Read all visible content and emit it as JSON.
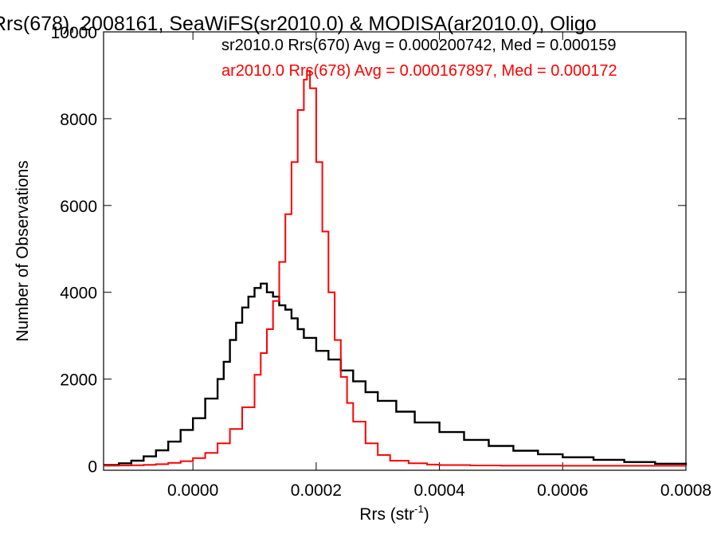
{
  "chart_data": {
    "type": "line",
    "title": "Rrs(678), 2008161, SeaWiFS(sr2010.0) & MODISA(ar2010.0), Oligo",
    "xlabel": "Rrs (str",
    "xlabel_sup": "-1",
    "xlabel_tail": ")",
    "ylabel": "Number of Observations",
    "xlim": [
      -0.000145,
      0.0008
    ],
    "ylim": [
      -100,
      10000
    ],
    "x_ticks": [
      0.0,
      0.0002,
      0.0004,
      0.0006,
      0.0008
    ],
    "x_tick_labels": [
      "0.0000",
      "0.0002",
      "0.0004",
      "0.0006",
      "0.0008"
    ],
    "y_ticks": [
      0,
      2000,
      4000,
      6000,
      8000,
      10000
    ],
    "y_tick_labels": [
      "0",
      "2000",
      "4000",
      "6000",
      "8000",
      "10000"
    ],
    "grid": false,
    "legend_position": "top-right",
    "series": [
      {
        "name": "sr2010.0 Rrs(670) Avg = 0.000200742, Med = 0.000159",
        "color": "#000000",
        "x": [
          -0.000145,
          -0.00012,
          -0.0001,
          -8e-05,
          -6e-05,
          -4e-05,
          -2e-05,
          0.0,
          2e-05,
          4e-05,
          5e-05,
          6e-05,
          7e-05,
          8e-05,
          9e-05,
          0.0001,
          0.00011,
          0.00012,
          0.00013,
          0.00014,
          0.00015,
          0.00016,
          0.00017,
          0.00018,
          0.0002,
          0.00022,
          0.00024,
          0.00026,
          0.00028,
          0.0003,
          0.00033,
          0.00036,
          0.0004,
          0.00044,
          0.00048,
          0.00052,
          0.00056,
          0.0006,
          0.00065,
          0.0007,
          0.00075,
          0.0008
        ],
        "y": [
          20,
          60,
          120,
          220,
          360,
          560,
          830,
          1100,
          1550,
          2000,
          2400,
          2900,
          3300,
          3650,
          3900,
          4100,
          4200,
          4000,
          3900,
          3700,
          3600,
          3400,
          3150,
          2950,
          2650,
          2450,
          2200,
          1950,
          1700,
          1500,
          1250,
          1000,
          780,
          600,
          460,
          350,
          270,
          200,
          140,
          90,
          50,
          25
        ]
      },
      {
        "name": "ar2010.0 Rrs(678) Avg = 0.000167897, Med = 0.000172",
        "color": "#ff0000",
        "x": [
          -0.000145,
          -0.00012,
          -0.0001,
          -8e-05,
          -6e-05,
          -4e-05,
          -2e-05,
          0.0,
          2e-05,
          4e-05,
          6e-05,
          8e-05,
          0.0001,
          0.00011,
          0.00012,
          0.00013,
          0.00014,
          0.00015,
          0.00016,
          0.00017,
          0.00018,
          0.000185,
          0.00019,
          0.0002,
          0.00021,
          0.00022,
          0.00023,
          0.00024,
          0.00025,
          0.00026,
          0.00028,
          0.0003,
          0.00032,
          0.00035,
          0.00038,
          0.0004,
          0.00045,
          0.0005,
          0.0006,
          0.0007,
          0.0008
        ],
        "y": [
          5,
          10,
          15,
          25,
          40,
          70,
          110,
          180,
          300,
          520,
          850,
          1350,
          2100,
          2600,
          3150,
          3800,
          4700,
          5800,
          7000,
          8200,
          8900,
          9100,
          8700,
          7000,
          5400,
          4000,
          2900,
          2050,
          1450,
          1020,
          520,
          250,
          120,
          60,
          30,
          20,
          10,
          5,
          3,
          2,
          1
        ]
      }
    ]
  }
}
